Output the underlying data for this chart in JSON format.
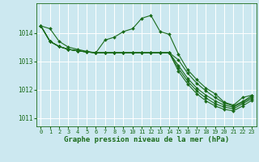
{
  "background_color": "#cce8f0",
  "grid_color": "#ffffff",
  "line_color": "#1a6b1a",
  "marker": "D",
  "markersize": 2.0,
  "linewidth": 0.8,
  "xlabel": "Graphe pression niveau de la mer (hPa)",
  "xlabel_fontsize": 6.5,
  "tick_fontsize": 5.5,
  "xlim": [
    -0.5,
    23.5
  ],
  "ylim": [
    1010.7,
    1015.05
  ],
  "yticks": [
    1011,
    1012,
    1013,
    1014
  ],
  "xticks": [
    0,
    1,
    2,
    3,
    4,
    5,
    6,
    7,
    8,
    9,
    10,
    11,
    12,
    13,
    14,
    15,
    16,
    17,
    18,
    19,
    20,
    21,
    22,
    23
  ],
  "series": [
    {
      "x": [
        0,
        1,
        2,
        3,
        4,
        5,
        6,
        7,
        8,
        9,
        10,
        11,
        12,
        13,
        14,
        15,
        16,
        17,
        18,
        19,
        20,
        21,
        22,
        23
      ],
      "y": [
        1014.25,
        1014.15,
        1013.7,
        1013.5,
        1013.42,
        1013.35,
        1013.3,
        1013.75,
        1013.85,
        1014.05,
        1014.15,
        1014.52,
        1014.62,
        1014.05,
        1013.95,
        1013.25,
        1012.7,
        1012.35,
        1012.05,
        1011.85,
        1011.55,
        1011.45,
        1011.72,
        1011.8
      ]
    },
    {
      "x": [
        0,
        1,
        2,
        3,
        4,
        5,
        6,
        7,
        8,
        9,
        10,
        11,
        12,
        13,
        14,
        15,
        16,
        17,
        18,
        19,
        20,
        21,
        22,
        23
      ],
      "y": [
        1014.25,
        1013.7,
        1013.52,
        1013.42,
        1013.37,
        1013.33,
        1013.3,
        1013.3,
        1013.3,
        1013.3,
        1013.3,
        1013.3,
        1013.3,
        1013.3,
        1013.3,
        1013.05,
        1012.58,
        1012.22,
        1011.95,
        1011.72,
        1011.52,
        1011.42,
        1011.58,
        1011.78
      ]
    },
    {
      "x": [
        0,
        1,
        2,
        3,
        4,
        5,
        6,
        7,
        8,
        9,
        10,
        11,
        12,
        13,
        14,
        15,
        16,
        17,
        18,
        19,
        20,
        21,
        22,
        23
      ],
      "y": [
        1014.25,
        1013.7,
        1013.52,
        1013.42,
        1013.37,
        1013.33,
        1013.3,
        1013.3,
        1013.3,
        1013.3,
        1013.3,
        1013.3,
        1013.3,
        1013.3,
        1013.3,
        1012.85,
        1012.4,
        1012.05,
        1011.8,
        1011.6,
        1011.45,
        1011.38,
        1011.55,
        1011.73
      ]
    },
    {
      "x": [
        0,
        1,
        2,
        3,
        4,
        5,
        6,
        7,
        8,
        9,
        10,
        11,
        12,
        13,
        14,
        15,
        16,
        17,
        18,
        19,
        20,
        21,
        22,
        23
      ],
      "y": [
        1014.25,
        1013.7,
        1013.52,
        1013.42,
        1013.37,
        1013.33,
        1013.3,
        1013.3,
        1013.3,
        1013.3,
        1013.3,
        1013.3,
        1013.3,
        1013.3,
        1013.3,
        1012.75,
        1012.3,
        1011.95,
        1011.7,
        1011.5,
        1011.38,
        1011.32,
        1011.5,
        1011.68
      ]
    },
    {
      "x": [
        0,
        1,
        2,
        3,
        4,
        5,
        6,
        7,
        8,
        9,
        10,
        11,
        12,
        13,
        14,
        15,
        16,
        17,
        18,
        19,
        20,
        21,
        22,
        23
      ],
      "y": [
        1014.25,
        1013.7,
        1013.52,
        1013.42,
        1013.37,
        1013.33,
        1013.3,
        1013.3,
        1013.3,
        1013.3,
        1013.3,
        1013.3,
        1013.3,
        1013.3,
        1013.3,
        1012.65,
        1012.2,
        1011.85,
        1011.6,
        1011.42,
        1011.3,
        1011.25,
        1011.42,
        1011.62
      ]
    }
  ]
}
